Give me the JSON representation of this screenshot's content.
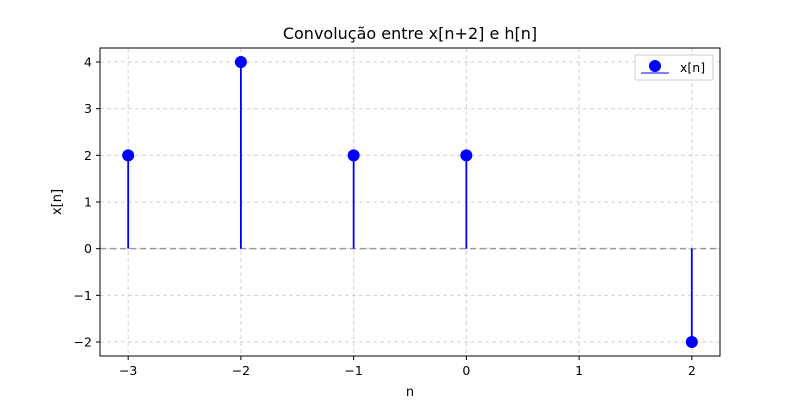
{
  "chart_data": {
    "type": "stem",
    "title": "Convolução entre x[n+2] e h[n]",
    "xlabel": "n",
    "ylabel": "x[n]",
    "xlim": [
      -3.25,
      2.25
    ],
    "ylim": [
      -2.3,
      4.3
    ],
    "xticks": [
      -3,
      -2,
      -1,
      0,
      1,
      2
    ],
    "yticks": [
      -2,
      -1,
      0,
      1,
      2,
      3,
      4
    ],
    "xtick_labels": [
      "−3",
      "−2",
      "−1",
      "0",
      "1",
      "2"
    ],
    "ytick_labels": [
      "−2",
      "−1",
      "0",
      "1",
      "2",
      "3",
      "4"
    ],
    "grid": true,
    "baseline": 0,
    "legend_position": "top-right",
    "colors": {
      "series": "#0000ff",
      "grid": "#d3d3d3",
      "baseline": "#999999",
      "axes": "#000000"
    },
    "series": [
      {
        "name": "x[n]",
        "x": [
          -3,
          -2,
          -1,
          0,
          2
        ],
        "y": [
          2,
          4,
          2,
          2,
          -2
        ]
      }
    ]
  }
}
